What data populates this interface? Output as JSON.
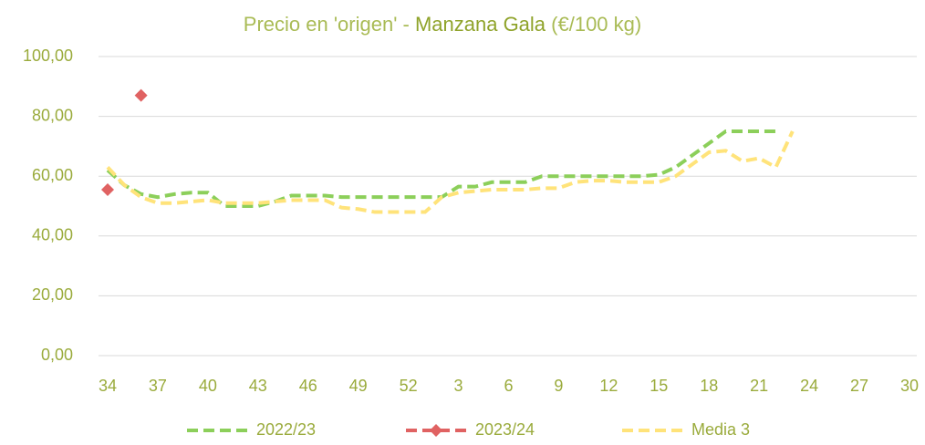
{
  "chart_data": {
    "type": "line",
    "title": [
      "Precio en 'origen' - ",
      "Manzana Gala",
      " (€/100 kg)"
    ],
    "categories": [
      "34",
      null,
      null,
      "37",
      null,
      null,
      "40",
      null,
      null,
      "43",
      null,
      null,
      "46",
      null,
      null,
      "49",
      null,
      null,
      "52",
      null,
      null,
      "3",
      null,
      null,
      "6",
      null,
      null,
      "9",
      null,
      null,
      "12",
      null,
      null,
      "15",
      null,
      null,
      "18",
      null,
      null,
      "21",
      null,
      null,
      "24",
      null,
      null,
      "27",
      null,
      null,
      "30"
    ],
    "series": [
      {
        "name": "2022/23",
        "color": "#8ccf5a",
        "values": [
          62,
          57,
          54,
          53,
          54,
          54.5,
          54.5,
          50,
          50,
          50,
          51.5,
          53.5,
          53.5,
          53.5,
          53,
          53,
          53,
          53,
          53,
          53,
          53,
          56.5,
          56.5,
          58,
          58,
          58,
          60,
          60,
          60,
          60,
          60,
          60,
          60,
          60.5,
          63,
          67,
          71,
          75,
          75,
          75,
          75,
          null,
          null,
          null,
          null,
          null,
          null,
          null,
          null
        ]
      },
      {
        "name": "2023/24",
        "color": "#e06262",
        "marker": "diamond",
        "values": [
          55.5,
          null,
          87,
          null,
          null,
          null,
          null,
          null,
          null,
          null,
          null,
          null,
          null,
          null,
          null,
          null,
          null,
          null,
          null,
          null,
          null,
          null,
          null,
          null,
          null,
          null,
          null,
          null,
          null,
          null,
          null,
          null,
          null,
          null,
          null,
          null,
          null,
          null,
          null,
          null,
          null,
          null,
          null,
          null,
          null,
          null,
          null,
          null,
          null
        ]
      },
      {
        "name": "Media 3",
        "color": "#ffe37a",
        "values": [
          63,
          57,
          53,
          51,
          51,
          51.5,
          52,
          51,
          51,
          51,
          51.5,
          52,
          52,
          52,
          49.5,
          49,
          48,
          48,
          48,
          48,
          53,
          54.5,
          55,
          55.5,
          55.5,
          55.5,
          56,
          56,
          58,
          58.5,
          58.5,
          58,
          58,
          58,
          60,
          64,
          68,
          68.5,
          65,
          66,
          63,
          75,
          null,
          null,
          null,
          null,
          null,
          null,
          null
        ]
      }
    ],
    "ylim": [
      0,
      100
    ],
    "yticks": [
      {
        "value": 0,
        "label": "0,00"
      },
      {
        "value": 20,
        "label": "20,00"
      },
      {
        "value": 40,
        "label": "40,00"
      },
      {
        "value": 60,
        "label": "60,00"
      },
      {
        "value": 80,
        "label": "80,00"
      },
      {
        "value": 100,
        "label": "100,00"
      }
    ],
    "grid": true,
    "legend": "bottom"
  }
}
